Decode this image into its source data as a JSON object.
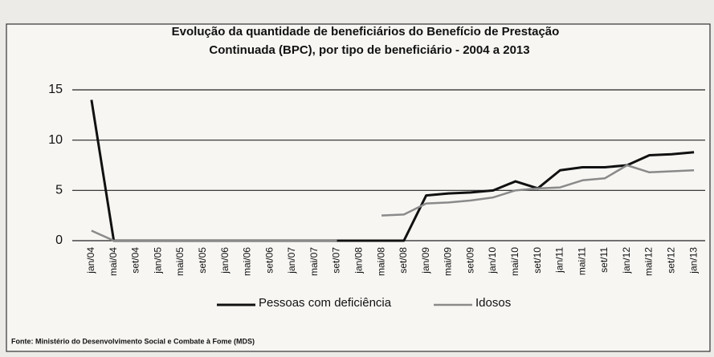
{
  "chart_data": {
    "type": "line",
    "title": "Evolução da quantidade de beneficiários do Benefício de Prestação",
    "subtitle": "Continuada (BPC), por tipo de beneficiário - 2004 a 2013",
    "source": "Fonte: Ministério do Desenvolvimento Social e Combate à Fome (MDS)",
    "categories": [
      "jan/04",
      "mai/04",
      "set/04",
      "jan/05",
      "mai/05",
      "set/05",
      "jan/06",
      "mai/06",
      "set/06",
      "jan/07",
      "mai/07",
      "set/07",
      "jan/08",
      "mai/08",
      "set/08",
      "jan/09",
      "mai/09",
      "set/09",
      "jan/10",
      "mai/10",
      "set/10",
      "jan/11",
      "mai/11",
      "set/11",
      "jan/12",
      "mai/12",
      "set/12",
      "jan/13"
    ],
    "series": [
      {
        "name": "Pessoas com deficiência",
        "color": "#111111",
        "values": [
          14,
          0,
          0,
          0,
          0,
          0,
          0,
          0,
          0,
          0,
          0,
          0,
          0,
          0,
          0,
          4.5,
          4.7,
          4.8,
          5,
          5.9,
          5.2,
          7,
          7.3,
          7.3,
          7.5,
          8.5,
          8.6,
          8.8
        ]
      },
      {
        "name": "Idosos",
        "color": "#8a8a8a",
        "values": [
          1,
          0,
          0,
          0,
          0,
          0,
          0,
          0,
          0,
          0,
          0,
          0,
          null,
          2.5,
          2.6,
          3.7,
          3.8,
          4,
          4.3,
          5,
          5.2,
          5.3,
          6,
          6.2,
          7.5,
          6.8,
          6.9,
          7
        ]
      }
    ],
    "ylim": [
      0,
      15
    ],
    "yticks": [
      0,
      5,
      10,
      15
    ],
    "grid": true
  }
}
